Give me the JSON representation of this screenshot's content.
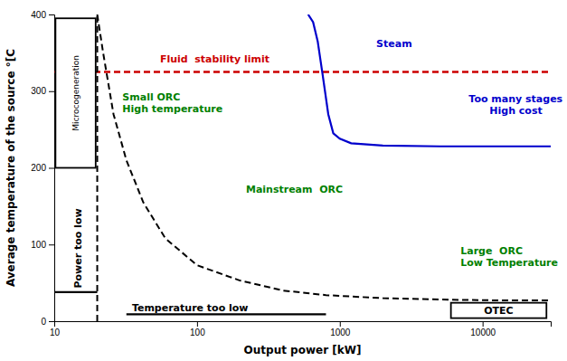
{
  "chart_data": {
    "type": "line",
    "log": "x",
    "grid": false,
    "xlabel": "Output power [kW]",
    "ylabel": "Average temperature of the source °[C",
    "xlim": [
      10,
      30000
    ],
    "ylim": [
      0,
      400
    ],
    "xticks": [
      10,
      100,
      1000,
      10000
    ],
    "yticks": [
      0,
      100,
      200,
      300,
      400
    ],
    "series": [
      {
        "color": "#000000",
        "line_style": "dashed",
        "x": [
          20,
          22,
          26,
          32,
          42,
          60,
          100,
          200,
          400,
          800,
          2000,
          6000,
          15000,
          30000
        ],
        "values": [
          400,
          350,
          270,
          210,
          155,
          108,
          73,
          53,
          40,
          34,
          30,
          28,
          27,
          27
        ]
      },
      {
        "color": "#000000",
        "line_style": "dashed",
        "x": [
          20,
          20
        ],
        "values": [
          0,
          400
        ]
      },
      {
        "color": "#0000cc",
        "line_style": "solid",
        "x": [
          600,
          650,
          700,
          760,
          830,
          900,
          1000,
          1200,
          2000,
          5000,
          15000,
          30000
        ],
        "values": [
          400,
          390,
          365,
          320,
          270,
          245,
          238,
          232,
          229,
          228,
          228,
          228
        ]
      },
      {
        "color": "#000000",
        "line_style": "solid",
        "x": [
          10,
          20
        ],
        "values": [
          38,
          38
        ]
      },
      {
        "color": "#000000",
        "line_style": "solid",
        "x": [
          32,
          800
        ],
        "values": [
          9,
          9
        ]
      }
    ],
    "hlines": [
      {
        "value": 325,
        "color": "#cc0000",
        "line_style": "dashed"
      }
    ],
    "boxes": [
      {
        "text": "OTEC",
        "x": [
          6000,
          28000
        ],
        "y": [
          4,
          24
        ],
        "color": "#000000"
      },
      {
        "text": "Microcogeneration",
        "x": [
          10.2,
          19.5
        ],
        "y": [
          200,
          395
        ],
        "color": "#000000"
      }
    ],
    "annotations": [
      {
        "text": "Fluid  stability limit",
        "x": 55,
        "y": 337,
        "color": "#cc0000"
      },
      {
        "text": "Steam",
        "x": 1800,
        "y": 358,
        "color": "#0000cc"
      },
      {
        "text": "Too many stages\n      High cost",
        "x": 8000,
        "y": 270,
        "color": "#0000cc"
      },
      {
        "text": "Small ORC\nHigh temperature",
        "x": 30,
        "y": 272,
        "color": "#008000"
      },
      {
        "text": "Mainstream  ORC",
        "x": 220,
        "y": 168,
        "color": "#008000"
      },
      {
        "text": "Large  ORC\nLow Temperature",
        "x": 7000,
        "y": 72,
        "color": "#008000"
      },
      {
        "text": "Power too low",
        "x": 14.8,
        "y": 95,
        "color": "#000000",
        "orientation": "vertical"
      },
      {
        "text": "Temperature too low",
        "x": 35,
        "y": 13,
        "color": "#000000"
      }
    ]
  }
}
